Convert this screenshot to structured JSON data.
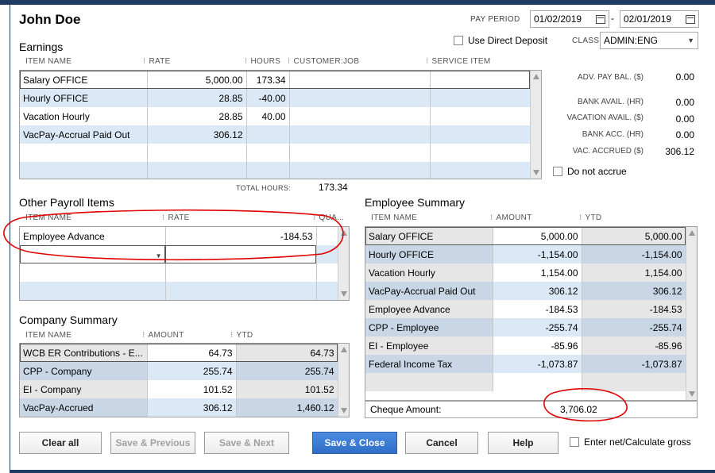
{
  "employee": {
    "name": "John Doe"
  },
  "header": {
    "pay_period_label": "PAY PERIOD",
    "pay_period_start": "01/02/2019",
    "pay_period_sep": "-",
    "pay_period_end": "02/01/2019",
    "use_direct_deposit_label": "Use Direct Deposit",
    "class_label": "CLASS",
    "class_value": "ADMIN:ENG"
  },
  "earnings": {
    "title": "Earnings",
    "columns": [
      "ITEM NAME",
      "RATE",
      "HOURS",
      "CUSTOMER:JOB",
      "SERVICE ITEM"
    ],
    "rows": [
      {
        "item": "Salary OFFICE",
        "rate": "5,000.00",
        "hours": "173.34",
        "customer": "",
        "service": ""
      },
      {
        "item": "Hourly OFFICE",
        "rate": "28.85",
        "hours": "-40.00",
        "customer": "",
        "service": ""
      },
      {
        "item": "Vacation Hourly",
        "rate": "28.85",
        "hours": "40.00",
        "customer": "",
        "service": ""
      },
      {
        "item": "VacPay-Accrual Paid Out",
        "rate": "306.12",
        "hours": "",
        "customer": "",
        "service": ""
      },
      {
        "item": "",
        "rate": "",
        "hours": "",
        "customer": "",
        "service": ""
      },
      {
        "item": "",
        "rate": "",
        "hours": "",
        "customer": "",
        "service": ""
      }
    ],
    "total_hours_label": "TOTAL HOURS:",
    "total_hours_value": "173.34"
  },
  "balances": {
    "items": [
      {
        "label": "ADV. PAY BAL. ($)",
        "value": "0.00"
      },
      {
        "label": "BANK AVAIL. (HR)",
        "value": "0.00"
      },
      {
        "label": "VACATION AVAIL. ($)",
        "value": "0.00"
      },
      {
        "label": "BANK ACC. (HR)",
        "value": "0.00"
      },
      {
        "label": "VAC. ACCRUED ($)",
        "value": "306.12"
      }
    ],
    "do_not_accrue_label": "Do not accrue"
  },
  "other_payroll": {
    "title": "Other Payroll Items",
    "columns": [
      "ITEM NAME",
      "RATE",
      "QUA..."
    ],
    "rows": [
      {
        "item": "Employee Advance",
        "rate": "-184.53",
        "qty": ""
      }
    ]
  },
  "company_summary": {
    "title": "Company Summary",
    "columns": [
      "ITEM NAME",
      "AMOUNT",
      "YTD"
    ],
    "rows": [
      {
        "item": "WCB ER Contributions - E...",
        "amount": "64.73",
        "ytd": "64.73"
      },
      {
        "item": "CPP - Company",
        "amount": "255.74",
        "ytd": "255.74"
      },
      {
        "item": "EI - Company",
        "amount": "101.52",
        "ytd": "101.52"
      },
      {
        "item": "VacPay-Accrued",
        "amount": "306.12",
        "ytd": "1,460.12"
      }
    ]
  },
  "employee_summary": {
    "title": "Employee Summary",
    "columns": [
      "ITEM NAME",
      "AMOUNT",
      "YTD"
    ],
    "rows": [
      {
        "item": "Salary OFFICE",
        "amount": "5,000.00",
        "ytd": "5,000.00"
      },
      {
        "item": "Hourly OFFICE",
        "amount": "-1,154.00",
        "ytd": "-1,154.00"
      },
      {
        "item": "Vacation Hourly",
        "amount": "1,154.00",
        "ytd": "1,154.00"
      },
      {
        "item": "VacPay-Accrual Paid Out",
        "amount": "306.12",
        "ytd": "306.12"
      },
      {
        "item": "Employee Advance",
        "amount": "-184.53",
        "ytd": "-184.53"
      },
      {
        "item": "CPP - Employee",
        "amount": "-255.74",
        "ytd": "-255.74"
      },
      {
        "item": "EI - Employee",
        "amount": "-85.96",
        "ytd": "-85.96"
      },
      {
        "item": "Federal Income Tax",
        "amount": "-1,073.87",
        "ytd": "-1,073.87"
      }
    ],
    "cheque_label": "Cheque Amount:",
    "cheque_value": "3,706.02"
  },
  "buttons": {
    "clear_all": "Clear all",
    "save_previous": "Save & Previous",
    "save_next": "Save & Next",
    "save_close": "Save & Close",
    "cancel": "Cancel",
    "help": "Help",
    "enter_net_label": "Enter net/Calculate gross"
  },
  "colors": {
    "accent": "#2f6fc7",
    "row_alt": "#dbe8f5",
    "annotation": "#e00000"
  }
}
